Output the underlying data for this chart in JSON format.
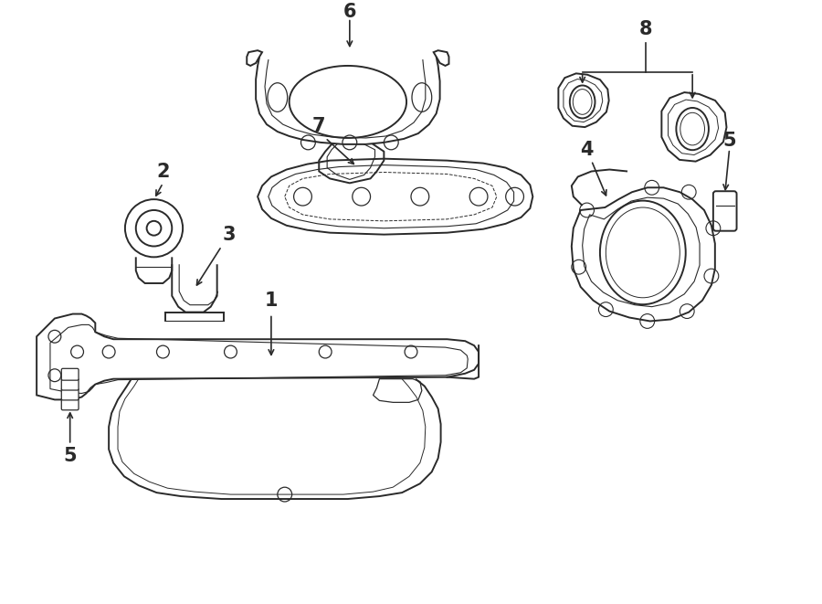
{
  "background": "#ffffff",
  "line_color": "#2a2a2a",
  "fig_width": 9.0,
  "fig_height": 6.61,
  "dpi": 100
}
